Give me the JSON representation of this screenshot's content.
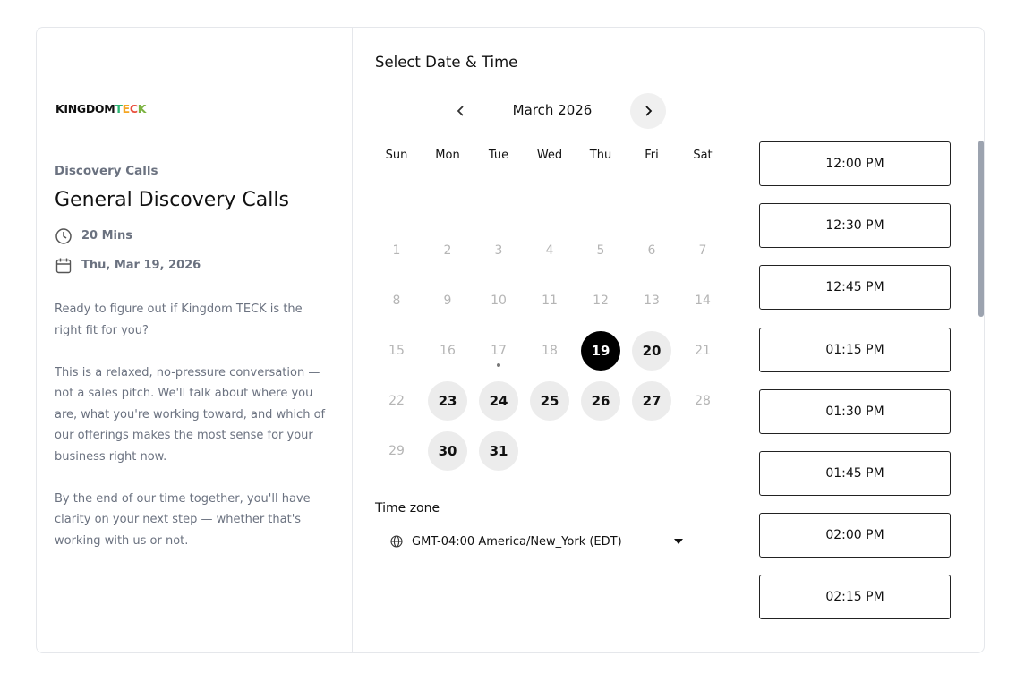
{
  "logo": {
    "prefix": "KINGDOM",
    "accent": [
      {
        "letter": "T",
        "color": "#2bb673"
      },
      {
        "letter": "E",
        "color": "#f5a623"
      },
      {
        "letter": "C",
        "color": "#e94e3c"
      },
      {
        "letter": "K",
        "color": "#7cb342"
      }
    ]
  },
  "event": {
    "category": "Discovery Calls",
    "title": "General Discovery Calls",
    "duration": "20 Mins",
    "date": "Thu, Mar 19, 2026",
    "description": [
      "Ready to figure out if Kingdom TECK is the right fit for you?",
      "This is a relaxed, no-pressure conversation — not a sales pitch. We'll talk about where you are, what you're working toward, and which of our offerings makes the most sense for your business right now.",
      "By the end of our time together, you'll have clarity on your next step — whether that's working with us or not."
    ]
  },
  "calendar": {
    "heading": "Select Date & Time",
    "month": "March 2026",
    "first_weekday": 0,
    "weekdays": [
      "Sun",
      "Mon",
      "Tue",
      "Wed",
      "Thu",
      "Fri",
      "Sat"
    ],
    "days": [
      {
        "day": 1,
        "state": "disabled"
      },
      {
        "day": 2,
        "state": "disabled"
      },
      {
        "day": 3,
        "state": "disabled"
      },
      {
        "day": 4,
        "state": "disabled"
      },
      {
        "day": 5,
        "state": "disabled"
      },
      {
        "day": 6,
        "state": "disabled"
      },
      {
        "day": 7,
        "state": "disabled"
      },
      {
        "day": 8,
        "state": "disabled"
      },
      {
        "day": 9,
        "state": "disabled"
      },
      {
        "day": 10,
        "state": "disabled"
      },
      {
        "day": 11,
        "state": "disabled"
      },
      {
        "day": 12,
        "state": "disabled"
      },
      {
        "day": 13,
        "state": "disabled"
      },
      {
        "day": 14,
        "state": "disabled"
      },
      {
        "day": 15,
        "state": "disabled"
      },
      {
        "day": 16,
        "state": "disabled"
      },
      {
        "day": 17,
        "state": "today"
      },
      {
        "day": 18,
        "state": "disabled"
      },
      {
        "day": 19,
        "state": "selected"
      },
      {
        "day": 20,
        "state": "available"
      },
      {
        "day": 21,
        "state": "disabled"
      },
      {
        "day": 22,
        "state": "disabled"
      },
      {
        "day": 23,
        "state": "available"
      },
      {
        "day": 24,
        "state": "available"
      },
      {
        "day": 25,
        "state": "available"
      },
      {
        "day": 26,
        "state": "available"
      },
      {
        "day": 27,
        "state": "available"
      },
      {
        "day": 28,
        "state": "disabled"
      },
      {
        "day": 29,
        "state": "disabled"
      },
      {
        "day": 30,
        "state": "available"
      },
      {
        "day": 31,
        "state": "available"
      }
    ]
  },
  "timezone": {
    "label": "Time zone",
    "value": "GMT-04:00 America/New_York (EDT)"
  },
  "slots": [
    "12:00 PM",
    "12:30 PM",
    "12:45 PM",
    "01:15 PM",
    "01:30 PM",
    "01:45 PM",
    "02:00 PM",
    "02:15 PM"
  ]
}
